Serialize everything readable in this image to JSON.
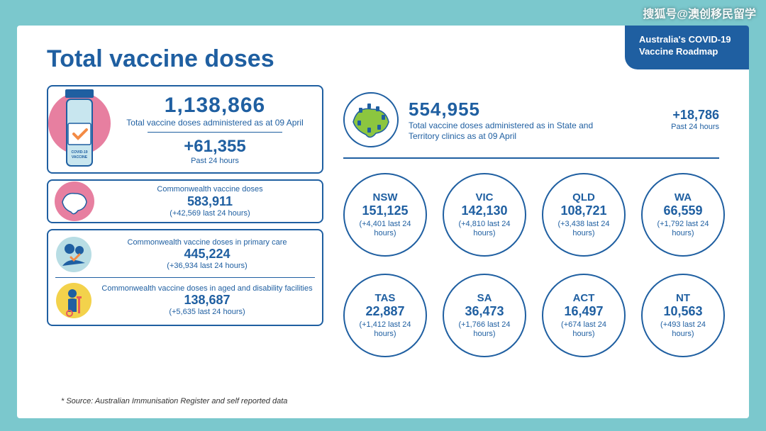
{
  "colors": {
    "page_bg": "#7bc8cd",
    "card_bg": "#ffffff",
    "primary": "#1f5fa1",
    "accent_green": "#8cc63f",
    "accent_orange": "#f38b45",
    "accent_yellow": "#f3d24b",
    "accent_pink": "#e77fa0"
  },
  "watermark": "搜狐号@澳创移民留学",
  "roadmap": {
    "line1": "Australia's COVID-19",
    "line2": "Vaccine Roadmap"
  },
  "title": "Total vaccine doses",
  "total": {
    "value": "1,138,866",
    "label": "Total vaccine doses administered as at 09 April",
    "delta_value": "+61,355",
    "delta_label": "Past 24 hours",
    "vial_label1": "COVID-19",
    "vial_label2": "VACCINE"
  },
  "commonwealth": {
    "title": "Commonwealth vaccine doses",
    "value": "583,911",
    "delta": "(+42,569 last 24 hours)"
  },
  "primary_care": {
    "title": "Commonwealth vaccine doses in primary care",
    "value": "445,224",
    "delta": "(+36,934 last 24 hours)"
  },
  "aged_care": {
    "title": "Commonwealth vaccine doses in aged and disability facilities",
    "value": "138,687",
    "delta": "(+5,635 last 24 hours)"
  },
  "state_total": {
    "value": "554,955",
    "label": "Total vaccine doses administered as in State and Territory clinics as at 09 April",
    "delta_value": "+18,786",
    "delta_label": "Past 24 hours"
  },
  "states": [
    {
      "code": "NSW",
      "value": "151,125",
      "delta": "(+4,401 last 24 hours)"
    },
    {
      "code": "VIC",
      "value": "142,130",
      "delta": "(+4,810 last 24 hours)"
    },
    {
      "code": "QLD",
      "value": "108,721",
      "delta": "(+3,438 last 24 hours)"
    },
    {
      "code": "WA",
      "value": "66,559",
      "delta": "(+1,792 last 24 hours)"
    },
    {
      "code": "TAS",
      "value": "22,887",
      "delta": "(+1,412 last 24 hours)"
    },
    {
      "code": "SA",
      "value": "36,473",
      "delta": "(+1,766 last 24 hours)"
    },
    {
      "code": "ACT",
      "value": "16,497",
      "delta": "(+674 last 24 hours)"
    },
    {
      "code": "NT",
      "value": "10,563",
      "delta": "(+493 last 24 hours)"
    }
  ],
  "source": "* Source: Australian Immunisation Register and self reported data"
}
